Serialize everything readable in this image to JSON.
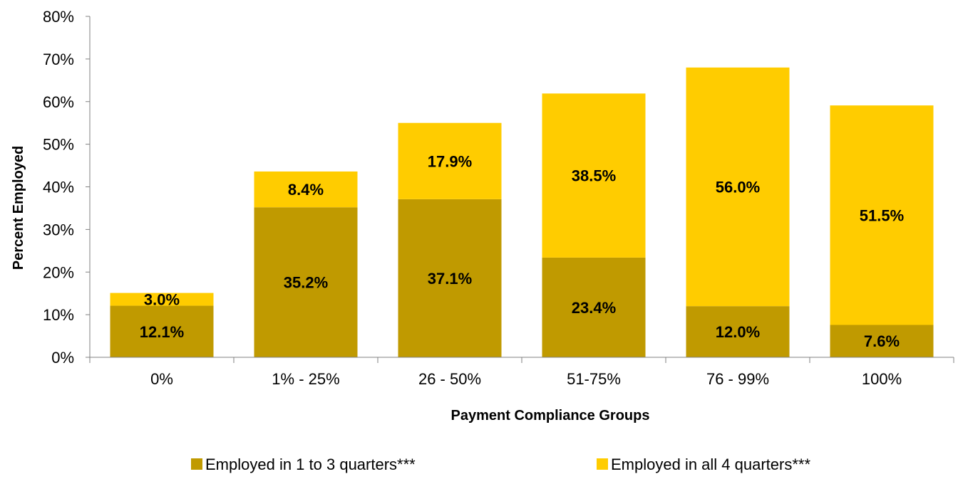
{
  "chart_data": {
    "type": "bar",
    "stacked": true,
    "categories": [
      "0%",
      "1% - 25%",
      "26 - 50%",
      "51-75%",
      "76 - 99%",
      "100%"
    ],
    "series": [
      {
        "name": "Employed in 1 to 3 quarters***",
        "color": "#C09A00",
        "values": [
          12.1,
          35.2,
          37.1,
          23.4,
          12.0,
          7.6
        ],
        "labels": [
          "12.1%",
          "35.2%",
          "37.1%",
          "23.4%",
          "12.0%",
          "7.6%"
        ]
      },
      {
        "name": "Employed in all 4 quarters***",
        "color": "#FFCC00",
        "values": [
          3.0,
          8.4,
          17.9,
          38.5,
          56.0,
          51.5
        ],
        "labels": [
          "3.0%",
          "8.4%",
          "17.9%",
          "38.5%",
          "56.0%",
          "51.5%"
        ]
      }
    ],
    "xlabel": "Payment Compliance Groups",
    "ylabel": "Percent Employed",
    "ylim": [
      0,
      80
    ],
    "yticks": [
      0,
      10,
      20,
      30,
      40,
      50,
      60,
      70,
      80
    ],
    "ytick_labels": [
      "0%",
      "10%",
      "20%",
      "30%",
      "40%",
      "50%",
      "60%",
      "70%",
      "80%"
    ],
    "grid": false,
    "legend_position": "bottom"
  }
}
